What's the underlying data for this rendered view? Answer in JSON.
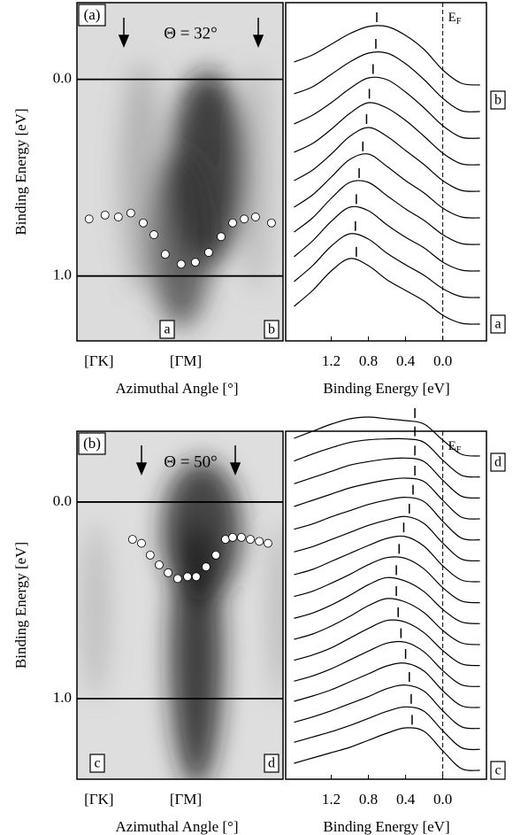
{
  "chart_data": [
    {
      "type": "scatter",
      "panel_label": "(a)",
      "title": "Θ = 32°",
      "ylabel": "Binding Energy [eV]",
      "xlabel": "Azimuthal Angle [°]",
      "x": [
        -3.4,
        2.1,
        6.7,
        11.0,
        15.3,
        19.0,
        22.9,
        28.4,
        33.3,
        37.9,
        42.2,
        46.2,
        50.2,
        54.1,
        59.6
      ],
      "y": [
        0.71,
        0.69,
        0.7,
        0.68,
        0.73,
        0.79,
        0.89,
        0.94,
        0.93,
        0.88,
        0.8,
        0.73,
        0.71,
        0.7,
        0.73
      ],
      "color": "#ffffff",
      "xlim": [
        -7.6,
        63.6
      ],
      "ylim": [
        1.33,
        -0.39
      ],
      "xticks": [
        {
          "value": 0,
          "label": "[ΓK]"
        },
        {
          "value": 30,
          "label": "[ΓM]"
        }
      ],
      "yticks": [
        {
          "value": 0,
          "label": "0.0"
        },
        {
          "value": 1,
          "label": "1.0"
        }
      ],
      "annotations": [
        "a",
        "b"
      ]
    },
    {
      "type": "line",
      "xlabel": "Binding Energy [eV]",
      "fermi_label": "E",
      "fermi_label_sub": "F",
      "x": [
        1.6,
        1.4,
        1.2,
        1.0,
        0.8,
        0.6,
        0.4,
        0.2,
        0.0,
        -0.2,
        -0.4
      ],
      "xlim": [
        1.69,
        -0.47
      ],
      "xticks": [
        1.2,
        0.8,
        0.4,
        {
          "value": 0,
          "label": "0.0"
        }
      ],
      "color": "#000000",
      "series": [
        {
          "values": [
            20,
            38,
            60,
            74,
            66,
            50,
            38,
            26,
            10,
            1,
            0
          ],
          "peak": 0.93
        },
        {
          "values": [
            18,
            36,
            58,
            72,
            66,
            50,
            37,
            25,
            10,
            1,
            0
          ],
          "peak": 0.94
        },
        {
          "values": [
            16,
            34,
            56,
            72,
            68,
            52,
            38,
            26,
            10,
            1,
            0
          ],
          "peak": 0.93
        },
        {
          "values": [
            14,
            30,
            52,
            70,
            70,
            55,
            40,
            27,
            11,
            1,
            0
          ],
          "peak": 0.9
        },
        {
          "values": [
            12,
            26,
            46,
            66,
            72,
            58,
            42,
            28,
            11,
            1,
            0
          ],
          "peak": 0.86
        },
        {
          "values": [
            12,
            24,
            42,
            62,
            72,
            62,
            46,
            30,
            12,
            1,
            0
          ],
          "peak": 0.82
        },
        {
          "values": [
            14,
            24,
            40,
            58,
            70,
            64,
            50,
            32,
            13,
            1,
            0
          ],
          "peak": 0.79
        },
        {
          "values": [
            16,
            26,
            40,
            56,
            68,
            66,
            52,
            34,
            14,
            1,
            0
          ],
          "peak": 0.75
        },
        {
          "values": [
            20,
            28,
            42,
            56,
            66,
            66,
            54,
            36,
            15,
            1,
            0
          ],
          "peak": 0.72
        },
        {
          "values": [
            26,
            34,
            46,
            58,
            66,
            66,
            56,
            40,
            17,
            2,
            0
          ],
          "peak": 0.71
        }
      ],
      "annotations": [
        "a",
        "b"
      ]
    },
    {
      "type": "scatter",
      "panel_label": "(b)",
      "title": "Θ = 50°",
      "ylabel": "Binding Energy [eV]",
      "xlabel": "Azimuthal Angle [°]",
      "x": [
        11.6,
        14.7,
        17.7,
        20.8,
        23.9,
        27.2,
        30.6,
        33.6,
        37.0,
        40.4,
        43.7,
        46.2,
        49.2,
        52.3,
        55.4,
        58.4
      ],
      "y": [
        0.19,
        0.21,
        0.27,
        0.32,
        0.36,
        0.39,
        0.38,
        0.38,
        0.33,
        0.27,
        0.19,
        0.18,
        0.18,
        0.19,
        0.2,
        0.21
      ],
      "color": "#ffffff",
      "xlim": [
        -7.6,
        63.6
      ],
      "ylim": [
        1.41,
        -0.36
      ],
      "xticks": [
        {
          "value": 0,
          "label": "[ΓK]"
        },
        {
          "value": 30,
          "label": "[ΓM]"
        }
      ],
      "yticks": [
        {
          "value": 0,
          "label": "0.0"
        },
        {
          "value": 1,
          "label": "1.0"
        }
      ],
      "annotations": [
        "c",
        "d"
      ]
    },
    {
      "type": "line",
      "xlabel": "Binding Energy [eV]",
      "fermi_label": "E",
      "fermi_label_sub": "F",
      "x": [
        1.6,
        1.4,
        1.2,
        1.0,
        0.8,
        0.6,
        0.4,
        0.2,
        0.0,
        -0.2,
        -0.4
      ],
      "xlim": [
        1.69,
        -0.47
      ],
      "xticks": [
        1.2,
        0.8,
        0.4,
        {
          "value": 0,
          "label": "0.0"
        }
      ],
      "color": "#000000",
      "series": [
        {
          "values": [
            8,
            14,
            20,
            26,
            34,
            42,
            48,
            44,
            22,
            2,
            0
          ],
          "peak": 0.33
        },
        {
          "values": [
            8,
            14,
            20,
            27,
            35,
            43,
            48,
            43,
            21,
            2,
            0
          ],
          "peak": 0.34
        },
        {
          "values": [
            7,
            13,
            20,
            28,
            36,
            45,
            49,
            42,
            20,
            2,
            0
          ],
          "peak": 0.36
        },
        {
          "values": [
            7,
            13,
            20,
            29,
            38,
            47,
            50,
            41,
            19,
            2,
            0
          ],
          "peak": 0.4
        },
        {
          "values": [
            6,
            12,
            20,
            30,
            40,
            49,
            50,
            39,
            18,
            2,
            0
          ],
          "peak": 0.45
        },
        {
          "values": [
            6,
            12,
            20,
            31,
            42,
            51,
            49,
            37,
            17,
            2,
            0
          ],
          "peak": 0.48
        },
        {
          "values": [
            6,
            12,
            21,
            32,
            44,
            52,
            48,
            36,
            16,
            2,
            0
          ],
          "peak": 0.5
        },
        {
          "values": [
            6,
            12,
            21,
            32,
            44,
            52,
            48,
            36,
            16,
            2,
            0
          ],
          "peak": 0.5
        },
        {
          "values": [
            7,
            13,
            22,
            32,
            43,
            51,
            50,
            38,
            17,
            2,
            0
          ],
          "peak": 0.47
        },
        {
          "values": [
            8,
            14,
            23,
            32,
            41,
            49,
            51,
            40,
            18,
            2,
            0
          ],
          "peak": 0.42
        },
        {
          "values": [
            10,
            16,
            24,
            32,
            40,
            46,
            50,
            42,
            20,
            2,
            0
          ],
          "peak": 0.36
        },
        {
          "values": [
            12,
            18,
            26,
            33,
            40,
            45,
            48,
            43,
            21,
            2,
            0
          ],
          "peak": 0.32
        },
        {
          "values": [
            14,
            21,
            28,
            35,
            40,
            44,
            46,
            42,
            21,
            2,
            0
          ],
          "peak": 0.3
        },
        {
          "values": [
            16,
            23,
            30,
            37,
            41,
            44,
            45,
            41,
            20,
            2,
            0
          ],
          "peak": 0.3
        },
        {
          "values": [
            18,
            26,
            33,
            39,
            42,
            43,
            43,
            39,
            19,
            2,
            0
          ],
          "peak": 0.3
        },
        {
          "values": [
            20,
            28,
            36,
            42,
            44,
            42,
            40,
            36,
            18,
            2,
            0
          ],
          "peak": 0.3
        }
      ],
      "annotations": [
        "c",
        "d"
      ]
    }
  ]
}
